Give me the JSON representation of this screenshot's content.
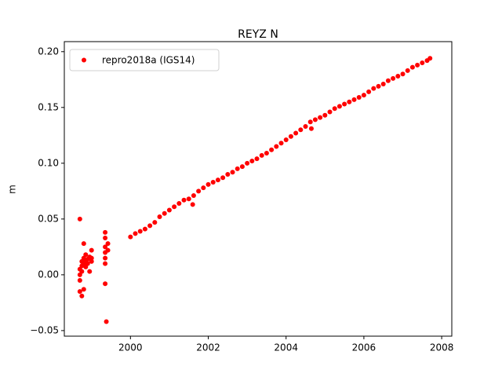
{
  "chart_data": {
    "type": "scatter",
    "title": "REYZ N",
    "y_label": "m",
    "x": [
      1998.7,
      1998.7,
      1998.7,
      1998.7,
      1998.7,
      1998.75,
      1998.75,
      1998.75,
      1998.75,
      1998.8,
      1998.8,
      1998.8,
      1998.8,
      1998.85,
      1998.85,
      1998.85,
      1998.9,
      1998.9,
      1998.95,
      1998.95,
      1999.0,
      1999.0,
      1999.0,
      1999.35,
      1999.35,
      1999.35,
      1999.35,
      1999.35,
      1999.35,
      1999.35,
      1999.38,
      1999.42,
      1999.42,
      2000.0,
      2000.125,
      2000.25,
      2000.375,
      2000.5,
      2000.625,
      2000.75,
      2000.875,
      2001.0,
      2001.125,
      2001.25,
      2001.375,
      2001.5,
      2001.625,
      2001.75,
      2001.875,
      2002.0,
      2002.125,
      2002.25,
      2002.375,
      2002.5,
      2002.625,
      2002.75,
      2002.875,
      2003.0,
      2003.125,
      2003.25,
      2003.375,
      2003.5,
      2003.625,
      2003.75,
      2003.875,
      2004.0,
      2004.125,
      2004.25,
      2004.375,
      2004.5,
      2004.625,
      2004.75,
      2004.875,
      2005.0,
      2005.125,
      2005.25,
      2005.375,
      2005.5,
      2005.625,
      2005.75,
      2005.875,
      2006.0,
      2006.125,
      2006.25,
      2006.375,
      2006.5,
      2006.625,
      2006.75,
      2006.875,
      2007.0,
      2007.125,
      2007.25,
      2007.375,
      2007.5,
      2007.625,
      2007.7,
      2001.6,
      2004.65
    ],
    "series": [
      {
        "name": "repro2018a (IGS14)",
        "color": "#ff0000",
        "values": [
          0.05,
          -0.015,
          -0.005,
          0.0,
          0.005,
          0.008,
          0.012,
          -0.019,
          0.003,
          0.01,
          0.015,
          -0.013,
          0.028,
          0.012,
          0.007,
          0.018,
          0.014,
          0.01,
          0.016,
          0.003,
          0.015,
          0.022,
          0.012,
          0.038,
          0.033,
          0.025,
          0.02,
          0.015,
          0.01,
          -0.008,
          -0.042,
          0.028,
          0.022,
          0.034,
          0.037,
          0.039,
          0.041,
          0.044,
          0.047,
          0.052,
          0.055,
          0.058,
          0.061,
          0.064,
          0.067,
          0.068,
          0.071,
          0.075,
          0.078,
          0.081,
          0.083,
          0.085,
          0.087,
          0.09,
          0.092,
          0.095,
          0.097,
          0.1,
          0.102,
          0.104,
          0.107,
          0.109,
          0.112,
          0.115,
          0.118,
          0.121,
          0.124,
          0.127,
          0.13,
          0.133,
          0.137,
          0.139,
          0.141,
          0.143,
          0.146,
          0.149,
          0.151,
          0.153,
          0.155,
          0.157,
          0.159,
          0.161,
          0.164,
          0.167,
          0.169,
          0.171,
          0.174,
          0.176,
          0.178,
          0.18,
          0.183,
          0.186,
          0.188,
          0.19,
          0.192,
          0.194,
          0.063,
          0.131
        ]
      }
    ],
    "xlim": [
      1998.3,
      2008.26
    ],
    "xticks": [
      2000,
      2002,
      2004,
      2006,
      2008
    ],
    "ylim": [
      -0.055,
      0.209
    ],
    "yticks": [
      {
        "value": -0.05,
        "label": "−0.05"
      },
      {
        "value": 0,
        "label": "0.00"
      },
      {
        "value": 0.05,
        "label": "0.05"
      },
      {
        "value": 0.1,
        "label": "0.10"
      },
      {
        "value": 0.15,
        "label": "0.15"
      },
      {
        "value": 0.2,
        "label": "0.20"
      }
    ],
    "legend": "upper left"
  }
}
